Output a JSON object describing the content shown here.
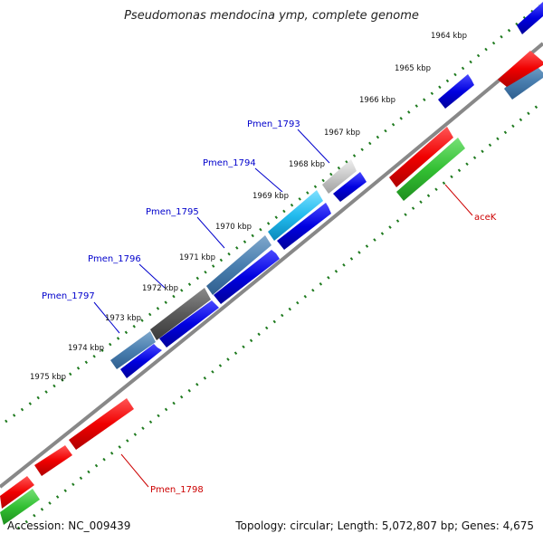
{
  "title": "Pseudomonas mendocina ymp, complete genome",
  "accession": "Accession: NC_009439",
  "topology": "Topology: circular; Length: 5,072,807 bp; Genes: 4,675",
  "colors": {
    "backbone": "#8a8a8a",
    "ruler_dots": "#1e7a1e",
    "forward_cds": "#0a0adf",
    "reverse_cds": "#ee0a0a",
    "rna": "#2fbf2f",
    "label_blue": "#0000cc",
    "label_red": "#cc0000"
  },
  "ticks": [
    {
      "label": "1964 kbp"
    },
    {
      "label": "1965 kbp"
    },
    {
      "label": "1966 kbp"
    },
    {
      "label": "1967 kbp"
    },
    {
      "label": "1968 kbp"
    },
    {
      "label": "1969 kbp"
    },
    {
      "label": "1970 kbp"
    },
    {
      "label": "1971 kbp"
    },
    {
      "label": "1972 kbp"
    },
    {
      "label": "1973 kbp"
    },
    {
      "label": "1974 kbp"
    },
    {
      "label": "1975 kbp"
    }
  ],
  "gene_labels": [
    {
      "text": "Pmen_1793",
      "strand": "forward"
    },
    {
      "text": "Pmen_1794",
      "strand": "forward"
    },
    {
      "text": "Pmen_1795",
      "strand": "forward"
    },
    {
      "text": "Pmen_1796",
      "strand": "forward"
    },
    {
      "text": "Pmen_1797",
      "strand": "forward"
    },
    {
      "text": "aceK",
      "strand": "reverse"
    },
    {
      "text": "Pmen_1798",
      "strand": "reverse"
    }
  ]
}
